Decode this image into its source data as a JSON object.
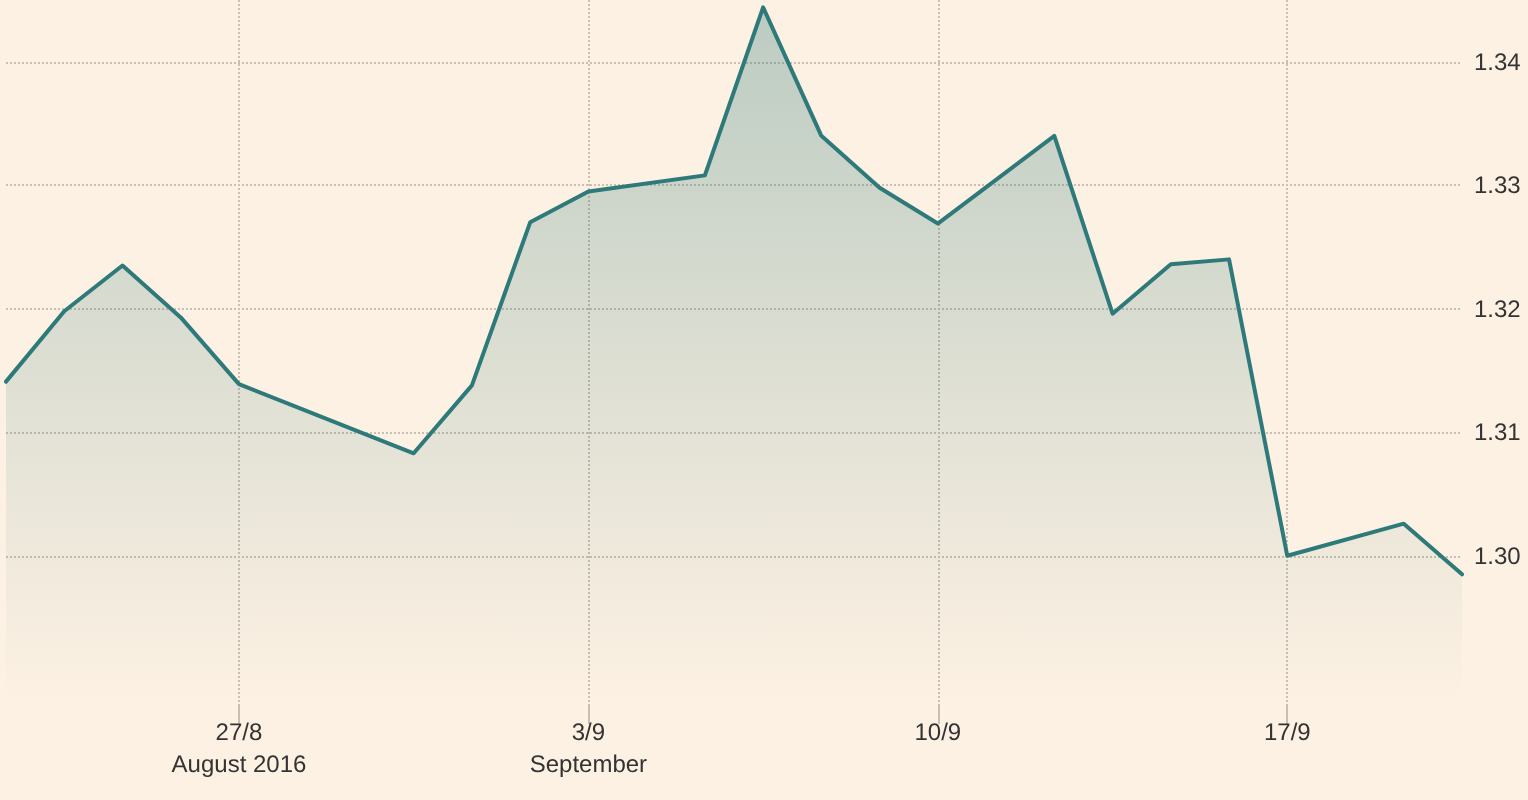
{
  "chart_data": {
    "type": "area",
    "categories": [
      null,
      null,
      null,
      null,
      "27/8\nAugust 2016",
      null,
      null,
      null,
      null,
      null,
      "3/9\nSeptember",
      null,
      null,
      null,
      null,
      null,
      "10/9",
      null,
      null,
      null,
      null,
      null,
      "17/9",
      null,
      null,
      null
    ],
    "series": [
      {
        "color": "#2e7a7a",
        "values": [
          1.3141,
          1.3198,
          1.3235,
          1.3193,
          1.3139,
          null,
          null,
          1.3083,
          1.3138,
          1.327,
          1.3295,
          null,
          1.3308,
          1.3444,
          1.334,
          1.3298,
          1.3269,
          null,
          1.334,
          1.3196,
          1.3236,
          1.324,
          1.3,
          null,
          1.3026,
          1.2985
        ]
      }
    ],
    "ylim": [
      1.288,
      1.345
    ],
    "yticks": [
      {
        "value": 1.3,
        "label": "1.30"
      },
      1.31,
      1.32,
      1.33,
      1.34
    ],
    "grid": true,
    "marker": "none",
    "line_style": "solid"
  }
}
